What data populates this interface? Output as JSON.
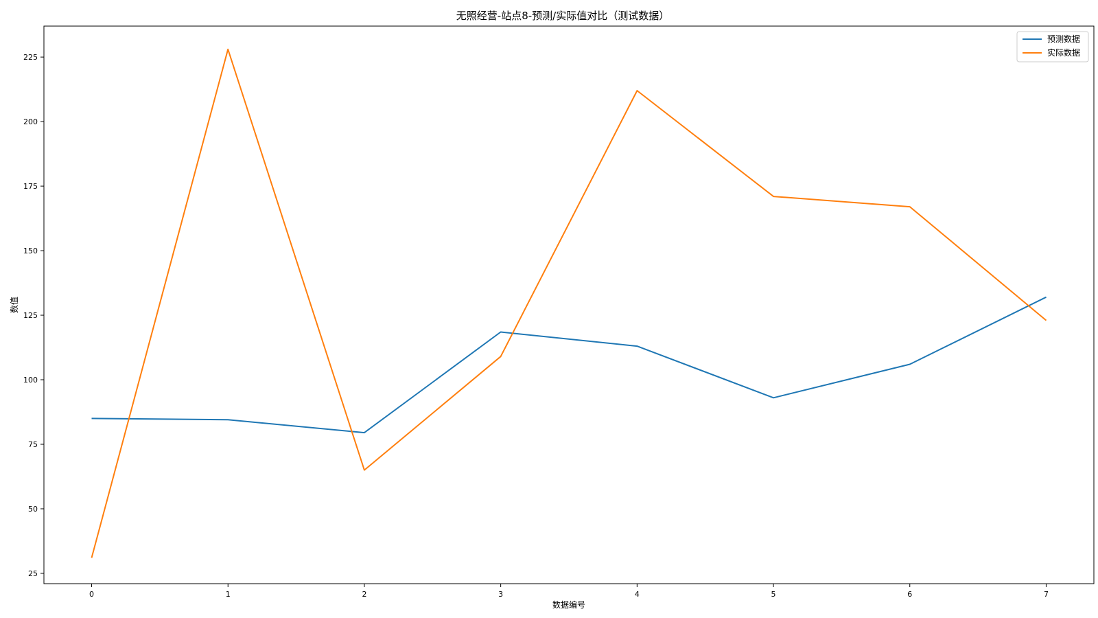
{
  "chart_data": {
    "type": "line",
    "title": "无照经营-站点8-预测/实际值对比（测试数据）",
    "xlabel": "数据编号",
    "ylabel": "数值",
    "x": [
      0,
      1,
      2,
      3,
      4,
      5,
      6,
      7
    ],
    "xlim": [
      -0.35,
      7.35
    ],
    "ylim": [
      21,
      237
    ],
    "xticks": [
      0,
      1,
      2,
      3,
      4,
      5,
      6,
      7
    ],
    "yticks": [
      25,
      50,
      75,
      100,
      125,
      150,
      175,
      200,
      225
    ],
    "grid": false,
    "legend_position": "top-right",
    "series": [
      {
        "name": "预测数据",
        "color": "#1f77b4",
        "values": [
          85,
          84.5,
          79.5,
          118.5,
          113,
          93,
          106,
          132
        ]
      },
      {
        "name": "实际数据",
        "color": "#ff7f0e",
        "values": [
          31,
          228,
          65,
          109,
          212,
          171,
          167,
          123
        ]
      }
    ]
  }
}
